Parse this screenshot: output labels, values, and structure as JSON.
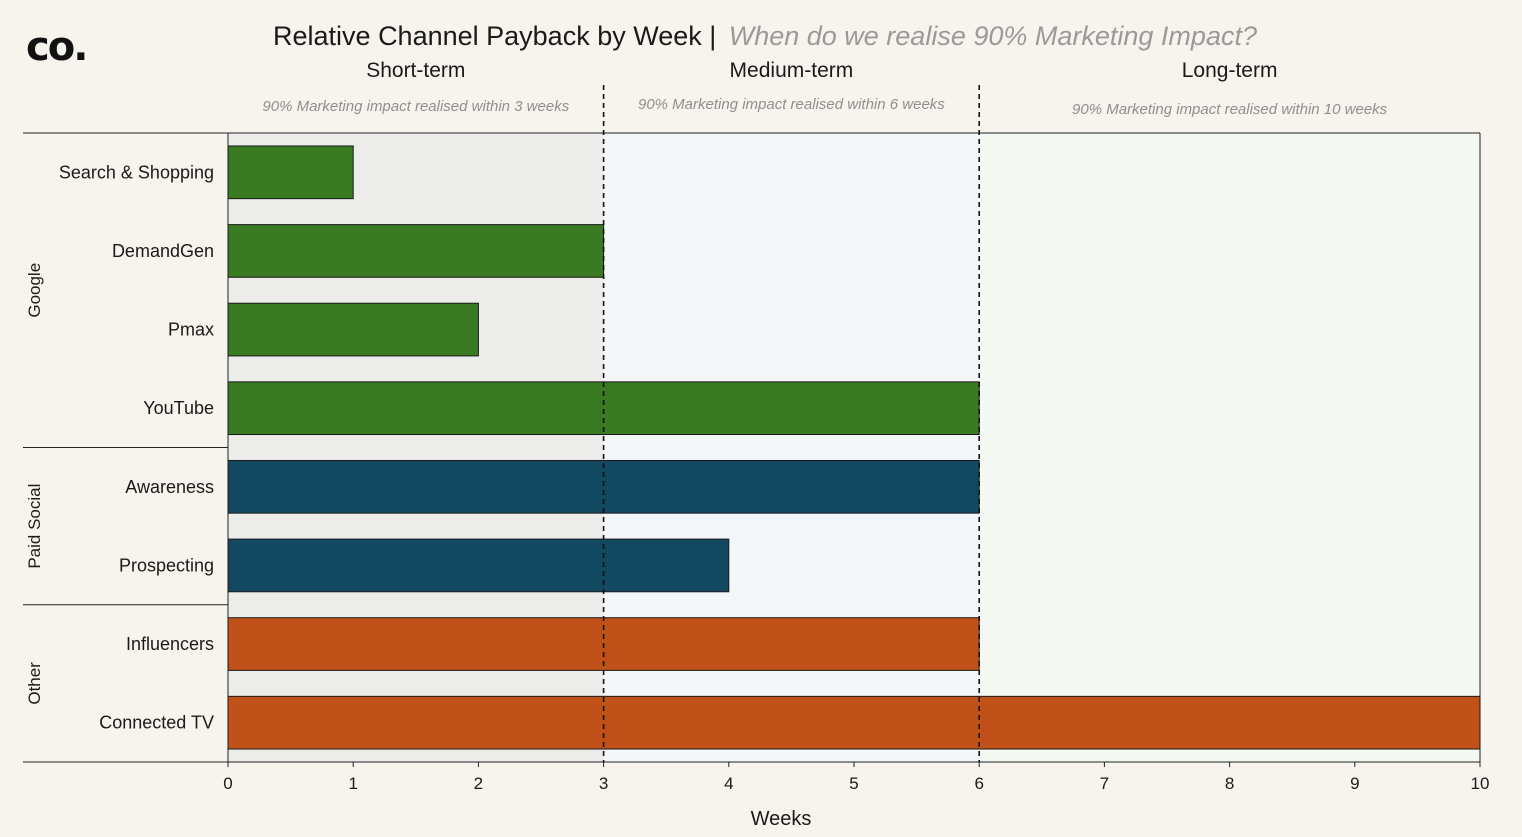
{
  "logo": "co.",
  "chart_data": {
    "type": "bar",
    "orientation": "horizontal",
    "title": "Relative Channel Payback by Week |",
    "subtitle": "When do we realise 90% Marketing Impact?",
    "xlabel": "Weeks",
    "ylabel": "",
    "xlim": [
      0,
      10
    ],
    "xticks": [
      0,
      1,
      2,
      3,
      4,
      5,
      6,
      7,
      8,
      9,
      10
    ],
    "grid": false,
    "bands": [
      {
        "label": "Short-term",
        "note": "90% Marketing impact realised within 3 weeks",
        "from": 0,
        "to": 3,
        "color": "#ececea"
      },
      {
        "label": "Medium-term",
        "note": "90% Marketing impact realised within 6 weeks",
        "from": 3,
        "to": 6,
        "color": "#f4f7fa"
      },
      {
        "label": "Long-term",
        "note": "90% Marketing impact realised within 10 weeks",
        "from": 6,
        "to": 10,
        "color": "#f4f8f2"
      }
    ],
    "reference_lines": [
      3,
      6
    ],
    "groups": [
      {
        "name": "Google",
        "color": "#3a7a23",
        "items": [
          {
            "label": "Search & Shopping",
            "value": 1
          },
          {
            "label": "DemandGen",
            "value": 3
          },
          {
            "label": "Pmax",
            "value": 2
          },
          {
            "label": "YouTube",
            "value": 6
          }
        ]
      },
      {
        "name": "Paid Social",
        "color": "#134861",
        "items": [
          {
            "label": "Awareness",
            "value": 6
          },
          {
            "label": "Prospecting",
            "value": 4
          }
        ]
      },
      {
        "name": "Other",
        "color": "#c05118",
        "items": [
          {
            "label": "Influencers",
            "value": 6
          },
          {
            "label": "Connected TV",
            "value": 10
          }
        ]
      }
    ]
  }
}
